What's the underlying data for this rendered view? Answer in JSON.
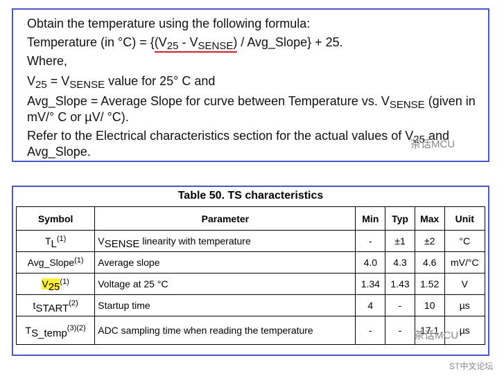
{
  "formula": {
    "lines": [
      [
        "Obtain the temperature using the following formula:"
      ],
      [
        "Temperature (in °C) = {",
        "(V",
        "25",
        " - V",
        "SENSE",
        ")",
        " / Avg_Slope} + 25."
      ],
      [
        "Where,"
      ],
      [
        "V",
        "25",
        " = V",
        "SENSE",
        " value for 25° C and"
      ],
      [
        "Avg_Slope = Average Slope for curve between Temperature vs. V",
        "SENSE",
        " (given in mV/° C or µV/ °C)."
      ],
      [
        "Refer to the Electrical characteristics section for the actual values of V",
        "25",
        " and Avg_Slope."
      ]
    ]
  },
  "table": {
    "title": "Table 50. TS characteristics",
    "header": [
      "Symbol",
      "Parameter",
      "Min",
      "Typ",
      "Max",
      "Unit"
    ],
    "rows": [
      {
        "symbol": [
          "T",
          "L",
          "(1)"
        ],
        "parameter": [
          "V",
          "SENSE",
          " linearity with temperature"
        ],
        "cells": [
          "-",
          "±1",
          "±2",
          "°C"
        ]
      },
      {
        "symbol": [
          "Avg_Slope",
          "(1)"
        ],
        "parameter": [
          "Average slope"
        ],
        "cells": [
          "4.0",
          "4.3",
          "4.6",
          "mV/°C"
        ]
      },
      {
        "symbol": [
          "V",
          "25",
          "(1)"
        ],
        "parameter": [
          "Voltage at 25 °C"
        ],
        "cells": [
          "1.34",
          "1.43",
          "1.52",
          "V"
        ]
      },
      {
        "symbol": [
          "t",
          "START",
          "(2)"
        ],
        "parameter": [
          "Startup time"
        ],
        "cells": [
          "4",
          "-",
          "10",
          "µs"
        ]
      },
      {
        "symbol": [
          "T",
          "S_temp",
          "(3)(2)"
        ],
        "parameter": [
          "ADC sampling time when reading the temperature"
        ],
        "cells": [
          "-",
          "-",
          "17.1",
          "µs"
        ]
      }
    ]
  },
  "watermarks": [
    "茶话MCU",
    "茶话MCU",
    "ST中文论坛"
  ]
}
